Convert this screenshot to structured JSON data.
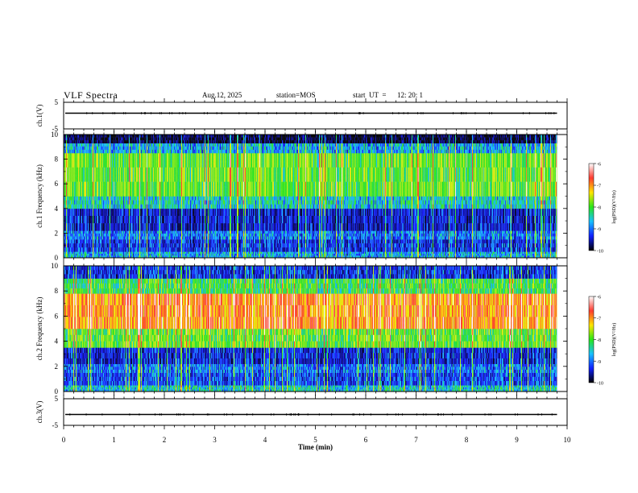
{
  "header": {
    "title": "VLF Spectra",
    "date": "Aug.12, 2025",
    "station": "station=MOS",
    "start_label": "start  UT  =",
    "start_time": "12: 20: 1"
  },
  "colorbar": {
    "label": "log(PSD)(V²/Hz)",
    "ticks": [
      "-6",
      "-7",
      "-8",
      "-9",
      "-10"
    ],
    "colors": [
      "#ffffff",
      "#ff3b2f",
      "#ffe600",
      "#29e619",
      "#18c0ff",
      "#1020ff",
      "#000000"
    ]
  },
  "chart_data": [
    {
      "type": "line",
      "panel": "ch1-waveform",
      "ylabel": "ch.1(V)",
      "yticks": [
        "5",
        "-5"
      ],
      "ylim": [
        -5,
        5
      ],
      "x": [
        0,
        10
      ],
      "y_level": 0
    },
    {
      "type": "heatmap",
      "panel": "ch1-spectrogram",
      "ylabel": "ch.1  Frequency (kHz)",
      "yticks": [
        "0",
        "2",
        "4",
        "6",
        "8",
        "10"
      ],
      "ylim": [
        0,
        10
      ],
      "xlim": [
        0,
        9.8
      ],
      "value_range": [
        -10,
        -6
      ],
      "bands": [
        {
          "from_khz": 0,
          "to_khz": 0.5,
          "level": 0.35
        },
        {
          "from_khz": 0.5,
          "to_khz": 1.5,
          "level": 0.22
        },
        {
          "from_khz": 1.5,
          "to_khz": 2.2,
          "level": 0.3
        },
        {
          "from_khz": 2.2,
          "to_khz": 4.0,
          "level": 0.18
        },
        {
          "from_khz": 4.0,
          "to_khz": 5.0,
          "level": 0.4
        },
        {
          "from_khz": 5.0,
          "to_khz": 8.5,
          "level": 0.55
        },
        {
          "from_khz": 8.5,
          "to_khz": 9.3,
          "level": 0.35
        },
        {
          "from_khz": 9.3,
          "to_khz": 10,
          "level": 0.05
        }
      ]
    },
    {
      "type": "heatmap",
      "panel": "ch2-spectrogram",
      "ylabel": "ch.2  Frequency (kHz)",
      "yticks": [
        "0",
        "2",
        "4",
        "6",
        "8",
        "10"
      ],
      "ylim": [
        0,
        10
      ],
      "xlim": [
        0,
        9.8
      ],
      "value_range": [
        -10,
        -6
      ],
      "bands": [
        {
          "from_khz": 0,
          "to_khz": 0.5,
          "level": 0.4
        },
        {
          "from_khz": 0.5,
          "to_khz": 1.5,
          "level": 0.25
        },
        {
          "from_khz": 1.5,
          "to_khz": 2.2,
          "level": 0.3
        },
        {
          "from_khz": 2.2,
          "to_khz": 3.5,
          "level": 0.2
        },
        {
          "from_khz": 3.5,
          "to_khz": 5.0,
          "level": 0.55
        },
        {
          "from_khz": 5.0,
          "to_khz": 7.8,
          "level": 0.82
        },
        {
          "from_khz": 7.8,
          "to_khz": 9.0,
          "level": 0.5
        },
        {
          "from_khz": 9.0,
          "to_khz": 10,
          "level": 0.22
        }
      ]
    },
    {
      "type": "line",
      "panel": "ch3-waveform",
      "ylabel": "ch.3(V)",
      "yticks": [
        "5",
        "-5"
      ],
      "ylim": [
        -5,
        5
      ],
      "x": [
        0,
        10
      ],
      "y_level": 0
    }
  ],
  "xaxis": {
    "label": "Time  (min)",
    "ticks": [
      "0",
      "1",
      "2",
      "3",
      "4",
      "5",
      "6",
      "7",
      "8",
      "9",
      "10"
    ],
    "xlim": [
      0,
      10
    ]
  }
}
